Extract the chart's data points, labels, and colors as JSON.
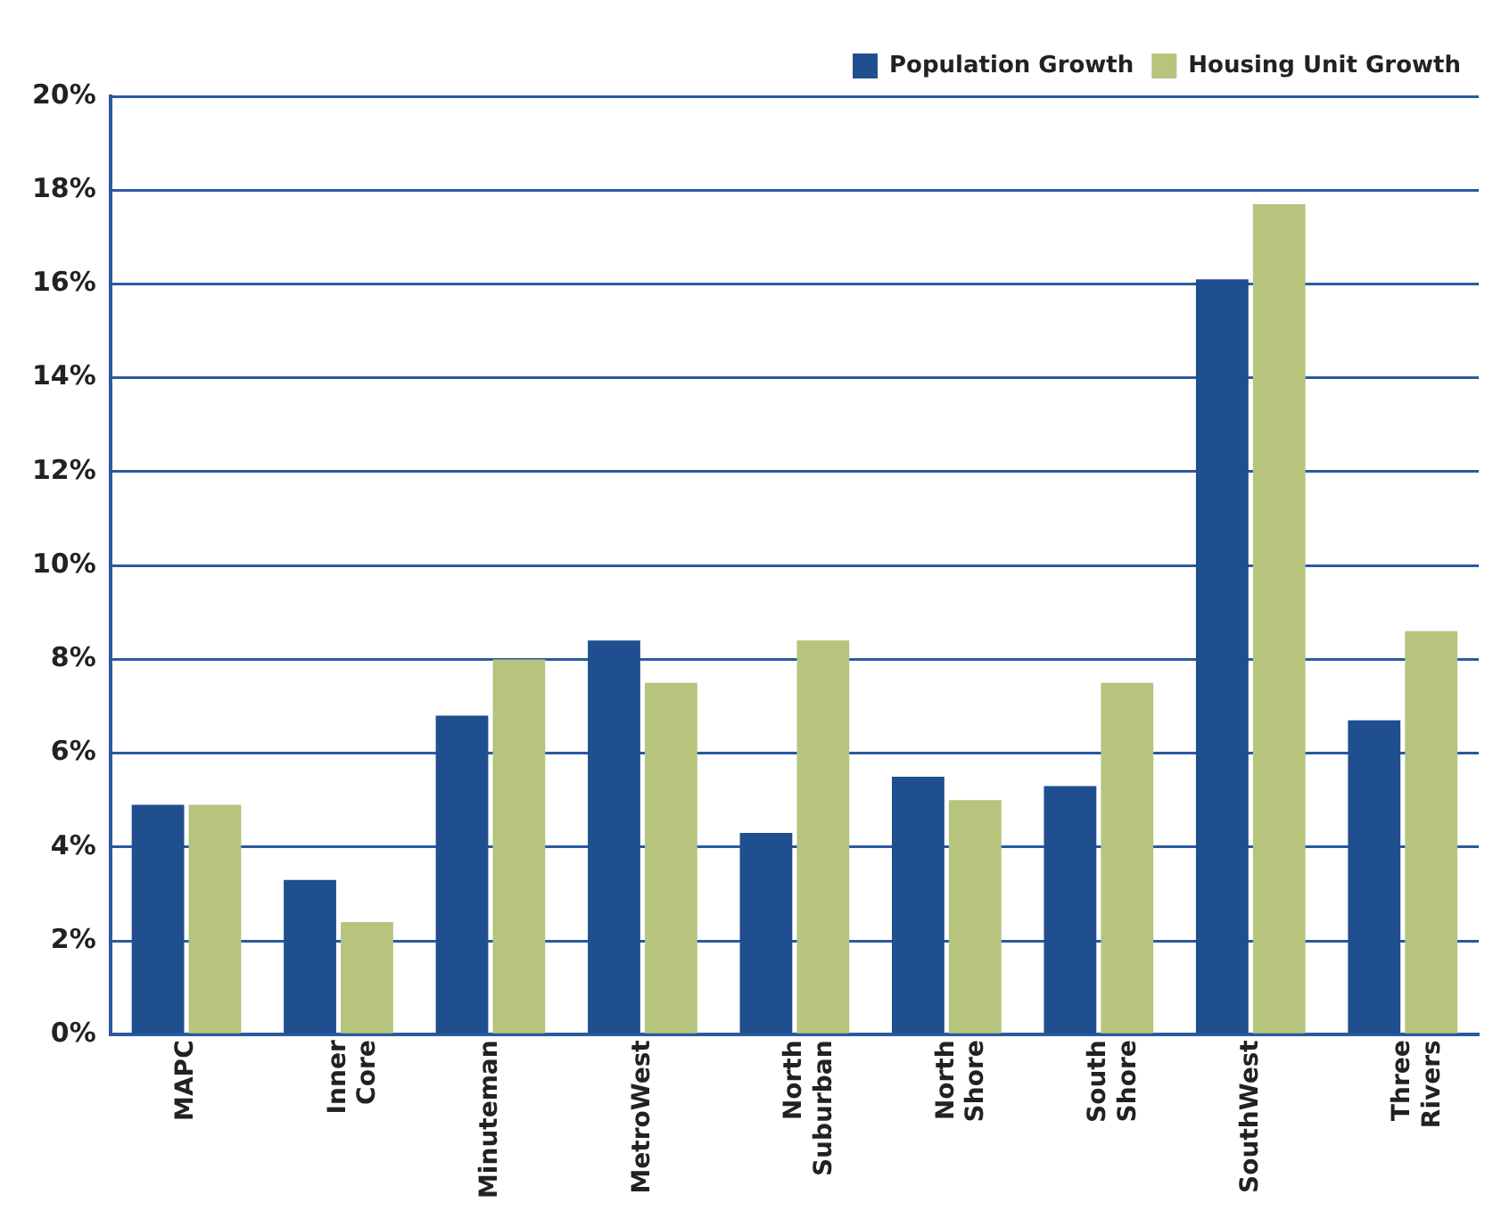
{
  "chart_data": {
    "type": "bar",
    "categories": [
      "MAPC",
      "Inner Core",
      "Minuteman",
      "MetroWest",
      "North Suburban",
      "North Shore",
      "South Shore",
      "SouthWest",
      "Three Rivers"
    ],
    "series": [
      {
        "name": "Population Growth",
        "color": "#1f4f8f",
        "values": [
          4.9,
          3.3,
          6.8,
          8.4,
          4.3,
          5.5,
          5.3,
          16.1,
          6.7
        ]
      },
      {
        "name": "Housing Unit Growth",
        "color": "#b6c47e",
        "values": [
          4.9,
          2.4,
          8.0,
          7.5,
          8.4,
          5.0,
          7.5,
          17.7,
          8.6
        ]
      }
    ],
    "ylim": [
      0,
      20
    ],
    "yticks": [
      {
        "value": 0,
        "label": "0%"
      },
      {
        "value": 2,
        "label": "2%"
      },
      {
        "value": 4,
        "label": "4%"
      },
      {
        "value": 6,
        "label": "6%"
      },
      {
        "value": 8,
        "label": "8%"
      },
      {
        "value": 10,
        "label": "10%"
      },
      {
        "value": 12,
        "label": "12%"
      },
      {
        "value": 14,
        "label": "14%"
      },
      {
        "value": 16,
        "label": "16%"
      },
      {
        "value": 18,
        "label": "18%"
      },
      {
        "value": 20,
        "label": "20%"
      }
    ],
    "grid": "y",
    "legend": "top right"
  }
}
